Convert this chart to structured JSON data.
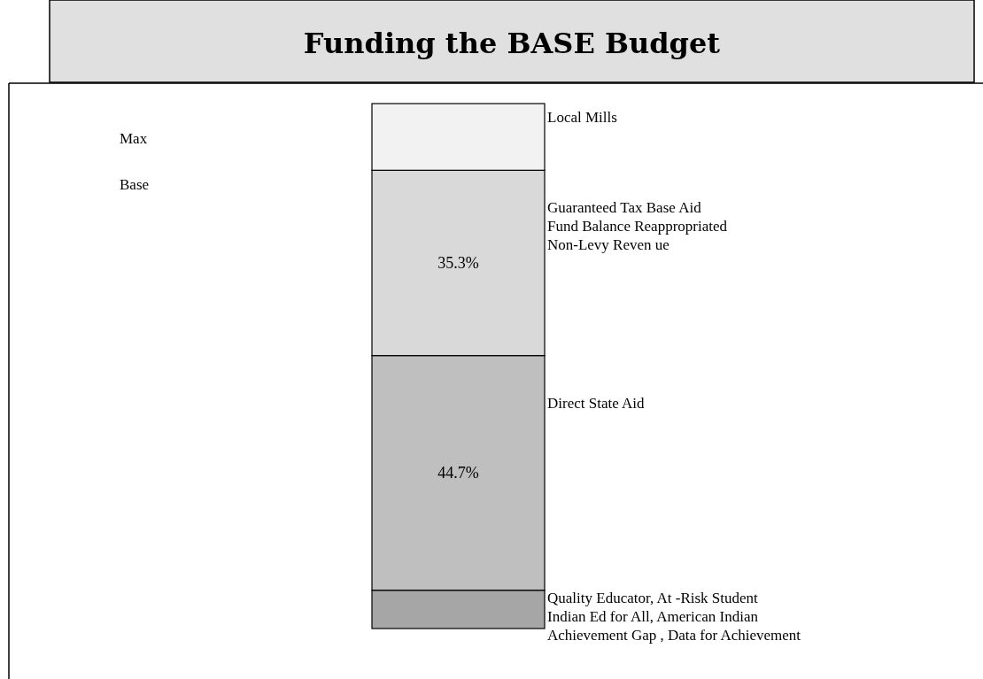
{
  "chart_data": {
    "type": "bar",
    "title": "Funding the BASE Budget",
    "stacked": true,
    "categories": [
      null
    ],
    "legend": false,
    "annotations": [
      "Max",
      "Base"
    ],
    "series": [
      {
        "name": "Quality Educator, At -Risk Student\nIndian Ed for All, American Indian\nAchievement Gap , Data for Achievement",
        "color": "#a6a6a6",
        "values": [
          7.3
        ],
        "value_labels": [
          null
        ]
      },
      {
        "name": "Direct State Aid",
        "color": "#bfbfbf",
        "values": [
          44.7
        ],
        "value_labels": [
          "44.7%"
        ]
      },
      {
        "name": "Guaranteed Tax Base Aid\nFund Balance Reappropriated\nNon-Levy Reven ue",
        "color": "#d9d9d9",
        "values": [
          35.3
        ],
        "value_labels": [
          "35.3%"
        ]
      },
      {
        "name": "Local Mills",
        "color": "#f2f2f2",
        "values": [
          12.7
        ],
        "value_labels": [
          null
        ]
      }
    ]
  }
}
